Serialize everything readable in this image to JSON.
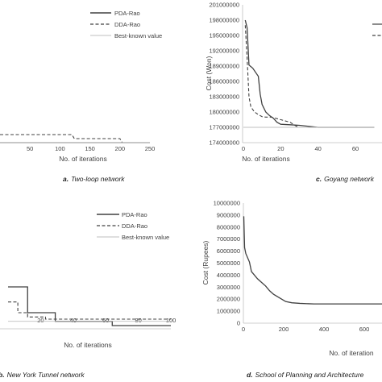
{
  "chart_data": [
    {
      "type": "line",
      "caption_letter": "a.",
      "caption_text": "Two-loop network",
      "xlabel": "No. of iterations",
      "ylabel": "",
      "x_ticks": [
        "50",
        "100",
        "150",
        "200",
        "250"
      ],
      "x_tick_values": [
        50,
        100,
        150,
        200,
        250
      ],
      "xlim": [
        0,
        250
      ],
      "legend": [
        "PDA-Rao",
        "DDA-Rao",
        "Best-known value"
      ],
      "series": [
        {
          "name": "PDA-Rao",
          "style": "solid",
          "x": [
            0,
            250
          ],
          "y": [
            0.0,
            0.0
          ]
        },
        {
          "name": "DDA-Rao",
          "style": "dashed",
          "x": [
            0,
            120,
            124,
            200,
            204
          ],
          "y": [
            0.5,
            0.5,
            0.25,
            0.25,
            0.0
          ]
        },
        {
          "name": "Best-known value",
          "style": "thin",
          "x": [
            0,
            250
          ],
          "y": [
            0.0,
            0.0
          ]
        }
      ]
    },
    {
      "type": "line",
      "caption_letter": "c.",
      "caption_text": "Goyang network",
      "xlabel": "No. of iterations",
      "ylabel": "Cost (Won)",
      "y_ticks": [
        "174000000",
        "177000000",
        "180000000",
        "183000000",
        "186000000",
        "189000000",
        "192000000",
        "195000000",
        "198000000",
        "201000000"
      ],
      "y_tick_values": [
        174000000,
        177000000,
        180000000,
        183000000,
        186000000,
        189000000,
        192000000,
        195000000,
        198000000,
        201000000
      ],
      "x_ticks": [
        "0",
        "20",
        "40",
        "60"
      ],
      "x_tick_values": [
        0,
        20,
        40,
        60
      ],
      "ylim": [
        174000000,
        201000000
      ],
      "xlim": [
        0,
        70
      ],
      "series": [
        {
          "name": "PDA-Rao",
          "style": "solid",
          "x": [
            1,
            2,
            3,
            4,
            5,
            8,
            9,
            10,
            12,
            14,
            16,
            18,
            20,
            25,
            30,
            35,
            40,
            70
          ],
          "y": [
            198000000,
            196500000,
            189200000,
            188900000,
            188600000,
            187000000,
            183500000,
            181500000,
            180000000,
            179300000,
            178800000,
            178000000,
            177600000,
            177500000,
            177400000,
            177200000,
            177000000,
            177000000
          ]
        },
        {
          "name": "DDA-Rao",
          "style": "dashed",
          "x": [
            1,
            2,
            3,
            4,
            6,
            8,
            10,
            12,
            15,
            20,
            25,
            28,
            30,
            40,
            70
          ],
          "y": [
            197000000,
            190500000,
            183000000,
            181000000,
            180000000,
            179500000,
            179100000,
            179000000,
            179000000,
            178500000,
            178000000,
            177300000,
            177000000,
            177000000,
            177000000
          ]
        },
        {
          "name": "Best-known value",
          "style": "thin",
          "x": [
            0,
            70
          ],
          "y": [
            177000000,
            177000000
          ]
        }
      ]
    },
    {
      "type": "line",
      "caption_letter": "b.",
      "caption_text": "New York Tunnel network",
      "xlabel": "No. of iterations",
      "ylabel": "",
      "x_ticks": [
        "20",
        "40",
        "60",
        "80",
        "100"
      ],
      "x_tick_values": [
        20,
        40,
        60,
        80,
        100
      ],
      "xlim": [
        0,
        100
      ],
      "legend": [
        "PDA-Rao",
        "DDA-Rao",
        "Best-known value"
      ],
      "series": [
        {
          "name": "PDA-Rao",
          "style": "solid",
          "x": [
            0,
            12,
            12,
            29,
            29,
            64,
            64,
            100
          ],
          "y": [
            0.9,
            0.9,
            0.3,
            0.3,
            0.1,
            0.1,
            0.0,
            0.0
          ]
        },
        {
          "name": "DDA-Rao",
          "style": "dashed",
          "x": [
            0,
            6,
            6,
            12,
            12,
            23,
            23,
            100
          ],
          "y": [
            0.55,
            0.55,
            0.3,
            0.3,
            0.2,
            0.2,
            0.15,
            0.15
          ]
        },
        {
          "name": "Best-known value",
          "style": "thin",
          "x": [
            0,
            100
          ],
          "y": [
            0.1,
            0.1
          ]
        }
      ]
    },
    {
      "type": "line",
      "caption_letter": "d.",
      "caption_text": "School of Planning and Architecture",
      "xlabel": "No. of iteration",
      "ylabel": "Cost (Rupees)",
      "y_ticks": [
        "0",
        "1000000",
        "2000000",
        "3000000",
        "4000000",
        "5000000",
        "6000000",
        "7000000",
        "8000000",
        "9000000",
        "10000000"
      ],
      "y_tick_values": [
        0,
        1000000,
        2000000,
        3000000,
        4000000,
        5000000,
        6000000,
        7000000,
        8000000,
        9000000,
        10000000
      ],
      "x_ticks": [
        "0",
        "200",
        "400",
        "600"
      ],
      "x_tick_values": [
        0,
        200,
        400,
        600
      ],
      "ylim": [
        0,
        10000000
      ],
      "xlim": [
        0,
        700
      ],
      "series": [
        {
          "name": "PDA-Rao",
          "style": "solid",
          "x": [
            2,
            6,
            12,
            30,
            40,
            55,
            70,
            90,
            110,
            130,
            150,
            170,
            190,
            210,
            240,
            280,
            350,
            700
          ],
          "y": [
            8900000,
            6300000,
            5800000,
            5100000,
            4300000,
            4000000,
            3700000,
            3400000,
            3100000,
            2700000,
            2400000,
            2200000,
            2000000,
            1800000,
            1700000,
            1650000,
            1600000,
            1600000
          ]
        }
      ]
    }
  ]
}
